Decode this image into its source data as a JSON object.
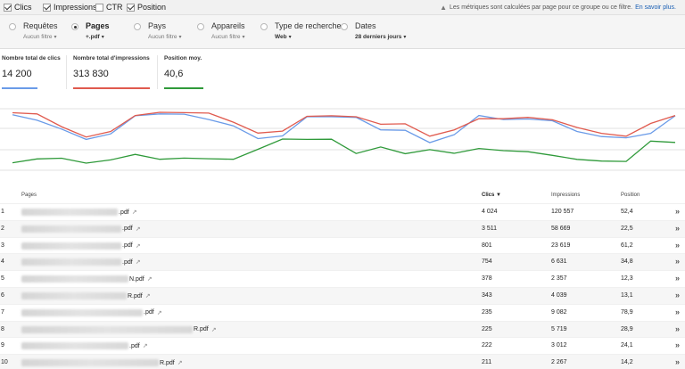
{
  "metrics": [
    {
      "label": "Clics",
      "checked": true
    },
    {
      "label": "Impressions",
      "checked": true
    },
    {
      "label": "CTR",
      "checked": false
    },
    {
      "label": "Position",
      "checked": true
    }
  ],
  "notice": {
    "text": "Les métriques sont calculées par page pour ce groupe ou ce filtre.",
    "link": "En savoir plus."
  },
  "dimensions": [
    {
      "label": "Requêtes",
      "sub": "Aucun filtre",
      "selected": false
    },
    {
      "label": "Pages",
      "sub": "+.pdf",
      "selected": true
    },
    {
      "label": "Pays",
      "sub": "Aucun filtre",
      "selected": false
    },
    {
      "label": "Appareils",
      "sub": "Aucun filtre",
      "selected": false
    },
    {
      "label": "Type de recherche",
      "sub": "Web",
      "selected": false
    },
    {
      "label": "Dates",
      "sub": "28 derniers jours",
      "selected": false
    }
  ],
  "scorecards": [
    {
      "title": "Nombre total de clics",
      "value": "14 200",
      "color": "#6a9be8"
    },
    {
      "title": "Nombre total d'impressions",
      "value": "313 830",
      "color": "#e05a4e"
    },
    {
      "title": "Position moy.",
      "value": "40,6",
      "color": "#2f9a3a"
    }
  ],
  "chart_data": {
    "type": "line",
    "x": [
      1,
      2,
      3,
      4,
      5,
      6,
      7,
      8,
      9,
      10,
      11,
      12,
      13,
      14,
      15,
      16,
      17,
      18,
      19,
      20,
      21,
      22,
      23,
      24,
      25,
      26,
      27,
      28
    ],
    "series": [
      {
        "name": "Clics",
        "color": "#6a9be8",
        "values": [
          595,
          560,
          505,
          440,
          475,
          588,
          600,
          598,
          565,
          525,
          445,
          462,
          582,
          582,
          578,
          500,
          497,
          420,
          470,
          590,
          565,
          568,
          557,
          490,
          458,
          450,
          478,
          588
        ]
      },
      {
        "name": "Impressions",
        "color": "#e05a4e",
        "values": [
          607,
          600,
          520,
          455,
          490,
          590,
          610,
          608,
          605,
          548,
          480,
          492,
          585,
          588,
          582,
          535,
          538,
          460,
          500,
          570,
          570,
          578,
          563,
          515,
          478,
          460,
          540,
          590
        ]
      },
      {
        "name": "Position",
        "color": "#2f9a3a",
        "values": [
          280,
          395,
          415,
          270,
          365,
          530,
          385,
          418,
          400,
          385,
          680,
          985,
          975,
          980,
          555,
          750,
          550,
          670,
          560,
          705,
          640,
          610,
          500,
          380,
          330,
          320,
          925,
          885
        ]
      }
    ]
  },
  "table": {
    "headers": {
      "page": "Pages",
      "clicks": "Clics ▼",
      "impressions": "Impressions",
      "position": "Position"
    },
    "rows": [
      {
        "num": "1",
        "page": ".pdf",
        "blur": 108,
        "clicks": "4 024",
        "impressions": "120 557",
        "position": "52,4"
      },
      {
        "num": "2",
        "page": ".pdf",
        "blur": 112,
        "clicks": "3 511",
        "impressions": "58 669",
        "position": "22,5"
      },
      {
        "num": "3",
        "page": ".pdf",
        "blur": 112,
        "clicks": "801",
        "impressions": "23 619",
        "position": "61,2"
      },
      {
        "num": "4",
        "page": ".pdf",
        "blur": 112,
        "clicks": "754",
        "impressions": "6 631",
        "position": "34,8"
      },
      {
        "num": "5",
        "page": "N.pdf",
        "blur": 120,
        "clicks": "378",
        "impressions": "2 357",
        "position": "12,3"
      },
      {
        "num": "6",
        "page": "R.pdf",
        "blur": 118,
        "clicks": "343",
        "impressions": "4 039",
        "position": "13,1"
      },
      {
        "num": "7",
        "page": ".pdf",
        "blur": 136,
        "clicks": "235",
        "impressions": "9 082",
        "position": "78,9"
      },
      {
        "num": "8",
        "page": "R.pdf",
        "blur": 192,
        "clicks": "225",
        "impressions": "5 719",
        "position": "28,9"
      },
      {
        "num": "9",
        "page": ".pdf",
        "blur": 120,
        "clicks": "222",
        "impressions": "3 012",
        "position": "24,1"
      },
      {
        "num": "10",
        "page": "R.pdf",
        "blur": 154,
        "clicks": "211",
        "impressions": "2 267",
        "position": "14,2"
      }
    ]
  },
  "icons": {
    "external": "external-link-icon",
    "chevron": "double-chevron-right-icon",
    "warning": "warning-icon"
  }
}
